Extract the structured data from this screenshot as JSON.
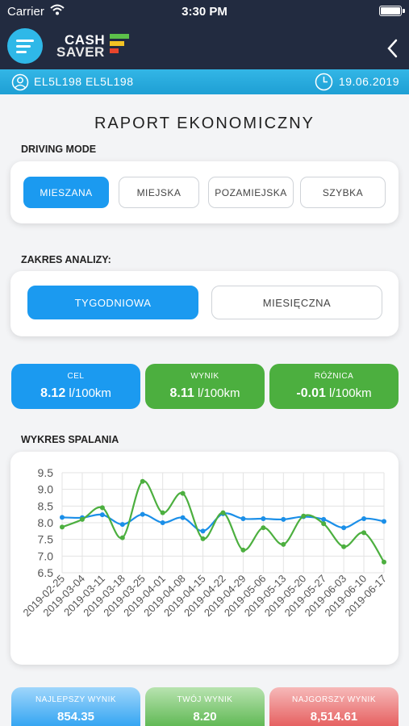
{
  "status_bar": {
    "carrier": "Carrier",
    "time": "3:30 PM"
  },
  "header": {
    "logo_top": "CASH",
    "logo_bottom": "SAVER"
  },
  "info_bar": {
    "vehicle": "EL5L198 EL5L198",
    "date": "19.06.2019"
  },
  "page_title": "RAPORT EKONOMICZNY",
  "driving_mode": {
    "label": "DRIVING MODE",
    "options": [
      "MIESZANA",
      "MIEJSKA",
      "POZAMIEJSKA",
      "SZYBKA"
    ],
    "selected": "MIESZANA"
  },
  "analysis_range": {
    "label": "ZAKRES ANALIZY:",
    "options": [
      "TYGODNIOWA",
      "MIESIĘCZNA"
    ],
    "selected": "TYGODNIOWA"
  },
  "stats": {
    "target": {
      "label": "CEL",
      "value": "8.12",
      "unit": " l/100km"
    },
    "result": {
      "label": "WYNIK",
      "value": "8.11",
      "unit": " l/100km"
    },
    "difference": {
      "label": "RÓŻNICA",
      "value": "-0.01",
      "unit": " l/100km"
    }
  },
  "chart_section_label": "WYKRES SPALANIA",
  "chart_data": {
    "type": "line",
    "x": [
      "2019-02-25",
      "2019-03-04",
      "2019-03-11",
      "2019-03-18",
      "2019-03-25",
      "2019-04-01",
      "2019-04-08",
      "2019-04-15",
      "2019-04-22",
      "2019-04-29",
      "2019-05-06",
      "2019-05-13",
      "2019-05-20",
      "2019-05-27",
      "2019-06-03",
      "2019-06-10",
      "2019-06-17"
    ],
    "ylim": [
      6.5,
      9.5
    ],
    "yticks": [
      "9.5",
      "9.0",
      "8.5",
      "8.0",
      "7.5",
      "7.0",
      "6.5"
    ],
    "grid": true,
    "series": [
      {
        "color": "#1b8fe8",
        "values": [
          8.16,
          8.15,
          8.24,
          7.95,
          8.25,
          8.0,
          8.15,
          7.75,
          8.27,
          8.12,
          8.12,
          8.1,
          8.18,
          8.1,
          7.85,
          8.12,
          8.04
        ]
      },
      {
        "color": "#4caf3f",
        "values": [
          7.87,
          8.1,
          8.45,
          7.55,
          9.24,
          8.3,
          8.88,
          7.52,
          8.3,
          7.18,
          7.85,
          7.35,
          8.2,
          7.97,
          7.28,
          7.7,
          6.82
        ]
      }
    ]
  },
  "bottom_stats": {
    "best": {
      "label": "NAJLEPSZY WYNIK",
      "value": "854.35"
    },
    "yours": {
      "label": "TWÓJ WYNIK",
      "value": "8.20"
    },
    "worst": {
      "label": "NAJGORSZY WYNIK",
      "value": "8,514.61"
    }
  },
  "colors": {
    "header": "#222b40",
    "accent": "#1b9af0",
    "green": "#4caf3f",
    "red": "#e24b4b"
  }
}
